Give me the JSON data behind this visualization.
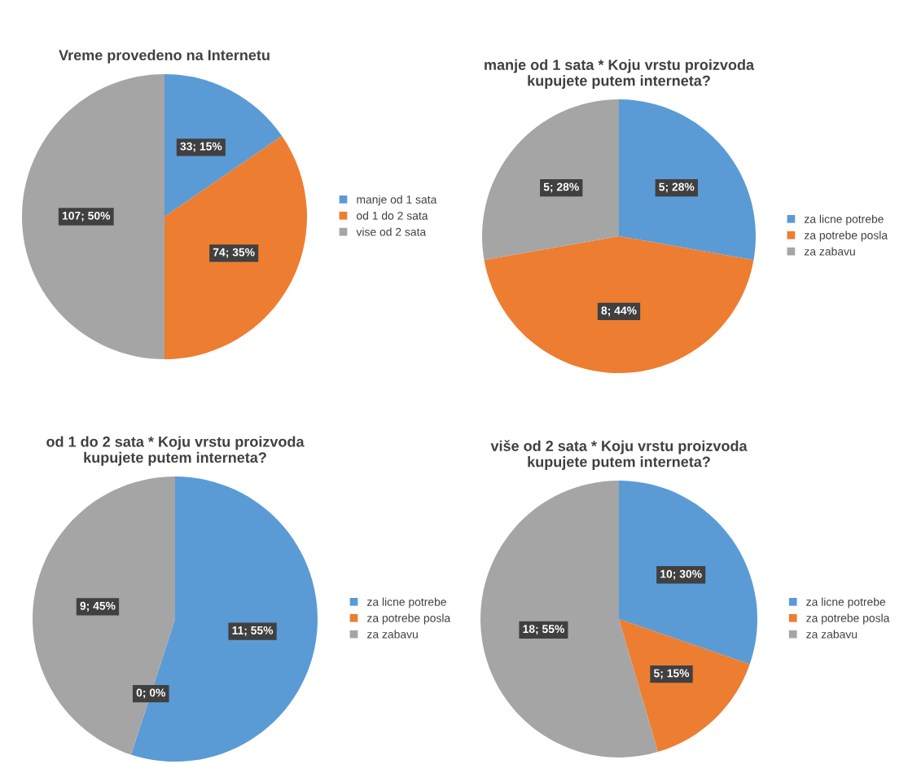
{
  "chart_data": [
    {
      "type": "pie",
      "title": "Vreme provedeno na Internetu",
      "categories": [
        "manje od 1 sata",
        "od 1 do 2 sata",
        "vise od 2 sata"
      ],
      "values": [
        33,
        74,
        107
      ],
      "colors": [
        "#5b9bd5",
        "#ed7d31",
        "#a5a5a5"
      ],
      "value_labels": [
        "33; 15%",
        "74; 35%",
        "107; 50%"
      ],
      "legend": "right"
    },
    {
      "type": "pie",
      "title": "manje od 1 sata * Koju vrstu proizvoda\nkupujete putem interneta?",
      "categories": [
        "za licne potrebe",
        "za potrebe posla",
        "za zabavu"
      ],
      "values": [
        5,
        8,
        5
      ],
      "colors": [
        "#5b9bd5",
        "#ed7d31",
        "#a5a5a5"
      ],
      "value_labels": [
        "5; 28%",
        "8; 44%",
        "5; 28%"
      ],
      "legend": "right"
    },
    {
      "type": "pie",
      "title": "od 1 do 2 sata * Koju vrstu proizvoda\nkupujete putem interneta?",
      "categories": [
        "za licne potrebe",
        "za potrebe posla",
        "za zabavu"
      ],
      "values": [
        11,
        0,
        9
      ],
      "colors": [
        "#5b9bd5",
        "#ed7d31",
        "#a5a5a5"
      ],
      "value_labels": [
        "11; 55%",
        "0; 0%",
        "9; 45%"
      ],
      "legend": "right"
    },
    {
      "type": "pie",
      "title": "više od 2 sata * Koju vrstu proizvoda\nkupujete putem interneta?",
      "categories": [
        "za licne potrebe",
        "za potrebe posla",
        "za zabavu"
      ],
      "values": [
        10,
        5,
        18
      ],
      "colors": [
        "#5b9bd5",
        "#ed7d31",
        "#a5a5a5"
      ],
      "value_labels": [
        "10; 30%",
        "5; 15%",
        "18; 55%"
      ],
      "legend": "right"
    }
  ]
}
